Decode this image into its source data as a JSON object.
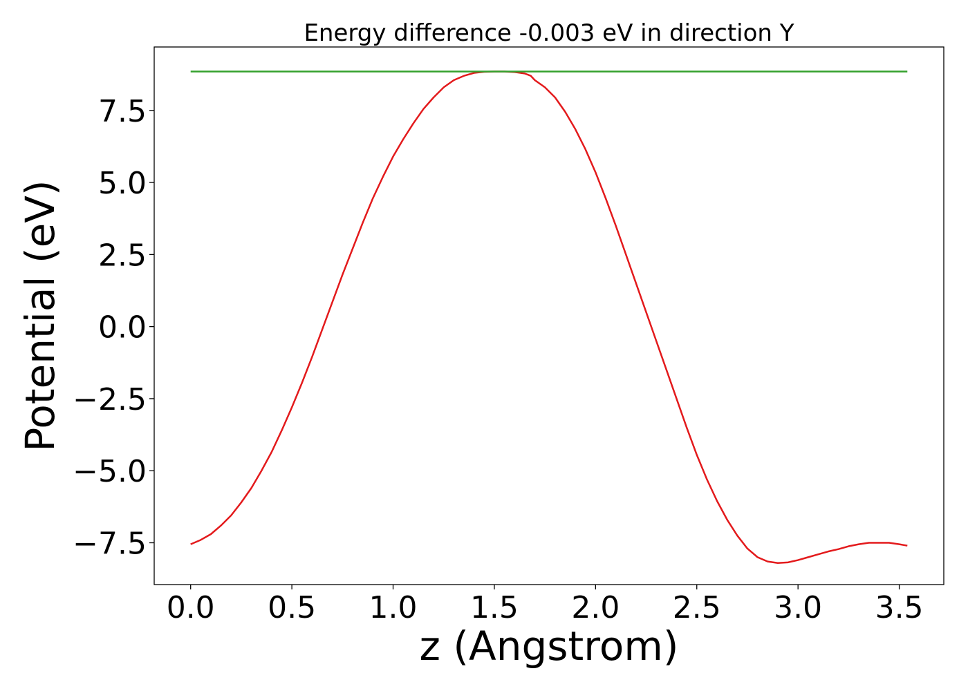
{
  "chart_data": {
    "type": "line",
    "title": "Energy difference -0.003 eV in direction Y",
    "xlabel": "z (Angstrom)",
    "ylabel": "Potential (eV)",
    "xlim": [
      -0.18,
      3.72
    ],
    "ylim": [
      -8.95,
      9.7
    ],
    "xticks": [
      0.0,
      0.5,
      1.0,
      1.5,
      2.0,
      2.5,
      3.0,
      3.5
    ],
    "xtick_labels": [
      "0.0",
      "0.5",
      "1.0",
      "1.5",
      "2.0",
      "2.5",
      "3.0",
      "3.5"
    ],
    "yticks": [
      -7.5,
      -5.0,
      -2.5,
      0.0,
      2.5,
      5.0,
      7.5
    ],
    "ytick_labels": [
      "−7.5",
      "−5.0",
      "−2.5",
      "0.0",
      "2.5",
      "5.0",
      "7.5"
    ],
    "grid": false,
    "series": [
      {
        "color": "#e31a1c",
        "x": [
          0.0,
          0.05,
          0.1,
          0.15,
          0.2,
          0.25,
          0.3,
          0.35,
          0.4,
          0.45,
          0.5,
          0.55,
          0.6,
          0.65,
          0.7,
          0.75,
          0.8,
          0.85,
          0.9,
          0.95,
          1.0,
          1.05,
          1.1,
          1.15,
          1.2,
          1.25,
          1.3,
          1.35,
          1.4,
          1.45,
          1.5,
          1.55,
          1.6,
          1.65,
          1.68,
          1.7,
          1.75,
          1.8,
          1.85,
          1.9,
          1.95,
          2.0,
          2.05,
          2.1,
          2.15,
          2.2,
          2.25,
          2.3,
          2.35,
          2.4,
          2.45,
          2.5,
          2.55,
          2.6,
          2.65,
          2.7,
          2.75,
          2.8,
          2.85,
          2.9,
          2.95,
          3.0,
          3.05,
          3.1,
          3.15,
          3.2,
          3.25,
          3.3,
          3.35,
          3.4,
          3.45,
          3.5,
          3.54
        ],
        "y": [
          -7.55,
          -7.4,
          -7.2,
          -6.9,
          -6.55,
          -6.1,
          -5.6,
          -5.0,
          -4.35,
          -3.6,
          -2.8,
          -1.95,
          -1.05,
          -0.1,
          0.85,
          1.8,
          2.7,
          3.6,
          4.45,
          5.2,
          5.9,
          6.5,
          7.05,
          7.55,
          7.95,
          8.3,
          8.55,
          8.7,
          8.8,
          8.84,
          8.85,
          8.85,
          8.83,
          8.78,
          8.7,
          8.55,
          8.3,
          7.95,
          7.45,
          6.85,
          6.15,
          5.35,
          4.45,
          3.5,
          2.5,
          1.5,
          0.5,
          -0.5,
          -1.5,
          -2.5,
          -3.5,
          -4.45,
          -5.3,
          -6.05,
          -6.7,
          -7.25,
          -7.7,
          -8.0,
          -8.15,
          -8.2,
          -8.18,
          -8.1,
          -8.0,
          -7.9,
          -7.8,
          -7.72,
          -7.62,
          -7.55,
          -7.5,
          -7.5,
          -7.5,
          -7.55,
          -7.6
        ]
      },
      {
        "color": "#33a02c",
        "x": [
          0.0,
          3.54
        ],
        "y": [
          8.85,
          8.85
        ]
      }
    ]
  }
}
